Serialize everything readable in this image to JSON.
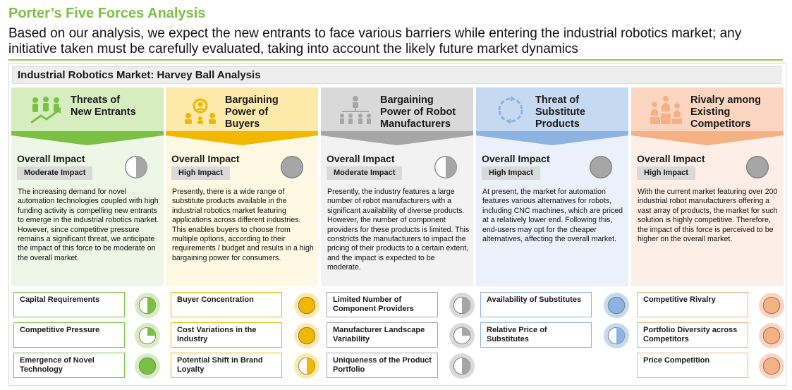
{
  "title": "Porter’s Five Forces Analysis",
  "subtitle": "Based on our analysis, we expect the new entrants to face various barriers while entering the industrial robotics market; any initiative taken must be carefully evaluated, taking into account the likely future market dynamics",
  "section_title": "Industrial Robotics Market: Harvey Ball Analysis",
  "overall_impact_label": "Overall Impact",
  "colors": {
    "title_green": "#7ac143",
    "rule_green": "#92d050",
    "ball_dark": "#a6a6a6"
  },
  "forces": [
    {
      "title_line1": "Threats of",
      "title_line2": "New Entrants",
      "icon": "people-growth-icon",
      "impact_level": "Moderate Impact",
      "impact_fill": 0.5,
      "accent": "#7ac143",
      "head_bg": "#d6edc0",
      "body_bg": "#eef7e6",
      "description": "The increasing demand for novel automation technologies coupled with high funding activity is compelling new entrants to emerge in the industrial robotics market. However, since competitive pressure remains a significant threat, we anticipate the impact of this force to be moderate on the overall market.",
      "factors": [
        {
          "label": "Capital Requirements",
          "fill": 0.5
        },
        {
          "label": "Competitive Pressure",
          "fill": 0.25
        },
        {
          "label": "Emergence of Novel Technology",
          "fill": 1.0
        }
      ]
    },
    {
      "title_line1": "Bargaining",
      "title_line2": "Power of",
      "title_line3": "Buyers",
      "icon": "buyer-group-icon",
      "impact_level": "High Impact",
      "impact_fill": 1.0,
      "accent": "#f2b800",
      "head_bg": "#fde9a9",
      "body_bg": "#fff8e3",
      "description": "Presently, there is a wide range of substitute products available in the industrial robotics market featuring applications across different industries. This enables buyers to choose from multiple options, according to their requirements / budget and results in a high bargaining power for consumers.",
      "factors": [
        {
          "label": "Buyer Concentration",
          "fill": 1.0
        },
        {
          "label": "Cost Variations in the Industry",
          "fill": 1.0
        },
        {
          "label": "Potential Shift in Brand Loyalty",
          "fill": 0.5
        }
      ]
    },
    {
      "title_line1": "Bargaining",
      "title_line2": "Power of Robot",
      "title_line3": "Manufacturers",
      "icon": "manufacturer-network-icon",
      "impact_level": "Moderate Impact",
      "impact_fill": 0.5,
      "accent": "#a6a6a6",
      "head_bg": "#d9d9d9",
      "body_bg": "#f2f2f2",
      "description": "Presently, the industry features a large number of robot manufacturers with a significant availability of diverse products. However, the number of component providers for these products is limited. This constricts the manufacturers to impact the pricing of their products to a certain extent, and the impact is expected to be moderate.",
      "factors": [
        {
          "label": "Limited Number of Component Providers",
          "fill": 0.5
        },
        {
          "label": "Manufacturer Landscape Variability",
          "fill": 0.25
        },
        {
          "label": "Uniqueness of the Product Portfolio",
          "fill": 0.5
        }
      ]
    },
    {
      "title_line1": "Threat of",
      "title_line2": "Substitute",
      "title_line3": "Products",
      "icon": "substitute-cycle-icon",
      "impact_level": "High Impact",
      "impact_fill": 1.0,
      "accent": "#8db3e2",
      "head_bg": "#c5d9f1",
      "body_bg": "#eaf1fa",
      "description": "At present, the market for automation features various alternatives for robots, including CNC machines, which are priced at a relatively lower end. Following this, end-users may opt for the cheaper alternatives, affecting the overall market.",
      "factors": [
        {
          "label": "Availability of Substitutes",
          "fill": 1.0
        },
        {
          "label": "Relative Price of Substitutes",
          "fill": 0.5
        }
      ]
    },
    {
      "title_line1": "Rivalry among",
      "title_line2": "Existing",
      "title_line3": "Competitors",
      "icon": "podium-rivalry-icon",
      "impact_level": "High Impact",
      "impact_fill": 1.0,
      "accent": "#f4b183",
      "head_bg": "#fbd5c0",
      "body_bg": "#fdeee6",
      "description": "With the current market featuring over 200 industrial robot manufacturers offering a vast array of products, the market for such solution is highly competitive. Therefore, the impact of this force is perceived to be higher on the overall market.",
      "factors": [
        {
          "label": "Competitive Rivalry",
          "fill": 1.0
        },
        {
          "label": "Portfolio Diversity across Competitors",
          "fill": 1.0
        },
        {
          "label": "Price Competition",
          "fill": 1.0
        }
      ]
    }
  ]
}
